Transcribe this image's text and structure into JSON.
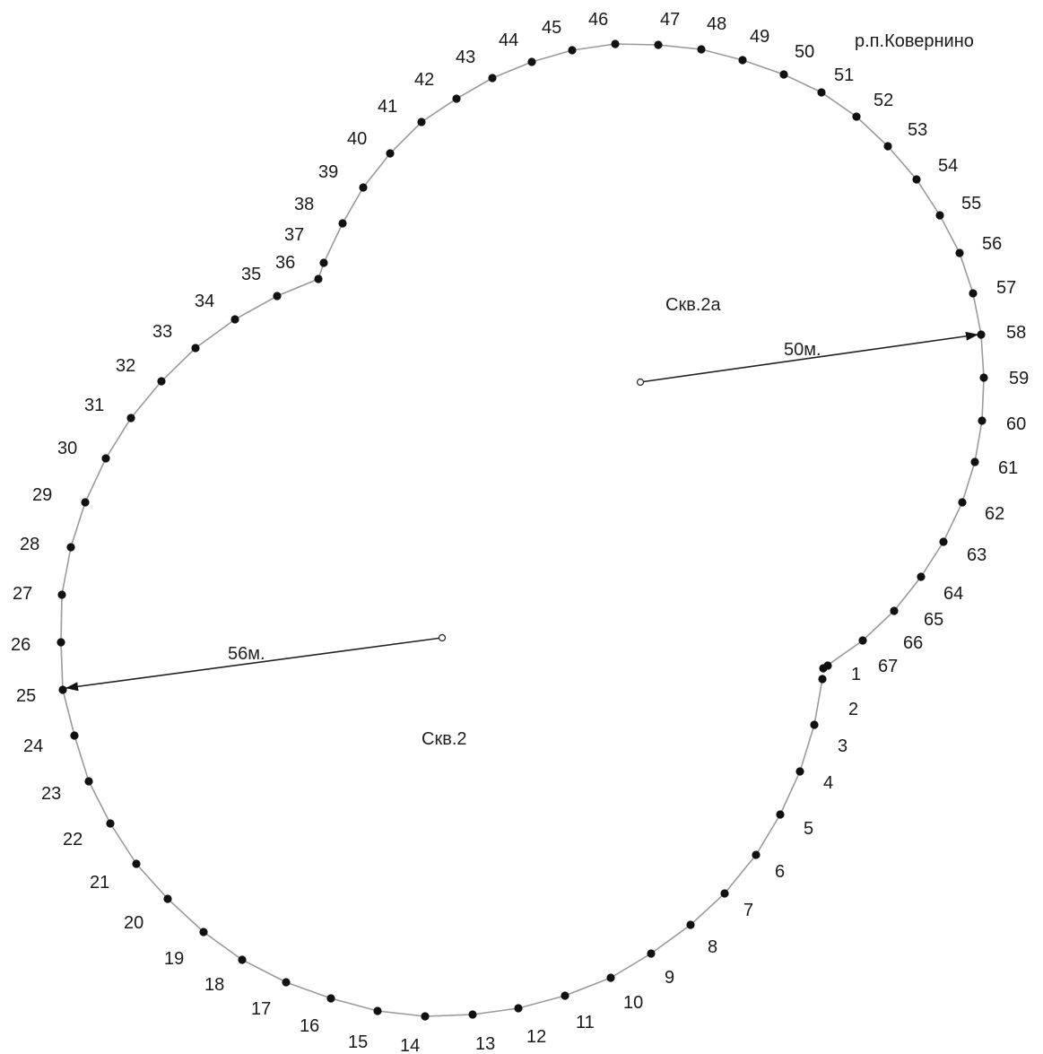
{
  "diagram": {
    "settlement_label": "р.п.Ковернино",
    "wells": [
      {
        "id": "skv2a",
        "label": "Скв.2а",
        "radius_label": "50м."
      },
      {
        "id": "skv2",
        "label": "Скв.2",
        "radius_label": "56м."
      }
    ],
    "points": [
      "1",
      "2",
      "3",
      "4",
      "5",
      "6",
      "7",
      "8",
      "9",
      "10",
      "11",
      "12",
      "13",
      "14",
      "15",
      "16",
      "17",
      "18",
      "19",
      "20",
      "21",
      "22",
      "23",
      "24",
      "25",
      "26",
      "27",
      "28",
      "29",
      "30",
      "31",
      "32",
      "33",
      "34",
      "35",
      "36",
      "37",
      "38",
      "39",
      "40",
      "41",
      "42",
      "43",
      "44",
      "45",
      "46",
      "47",
      "48",
      "49",
      "50",
      "51",
      "52",
      "53",
      "54",
      "55",
      "56",
      "57",
      "58",
      "59",
      "60",
      "61",
      "62",
      "63",
      "64",
      "65",
      "66",
      "67"
    ]
  }
}
